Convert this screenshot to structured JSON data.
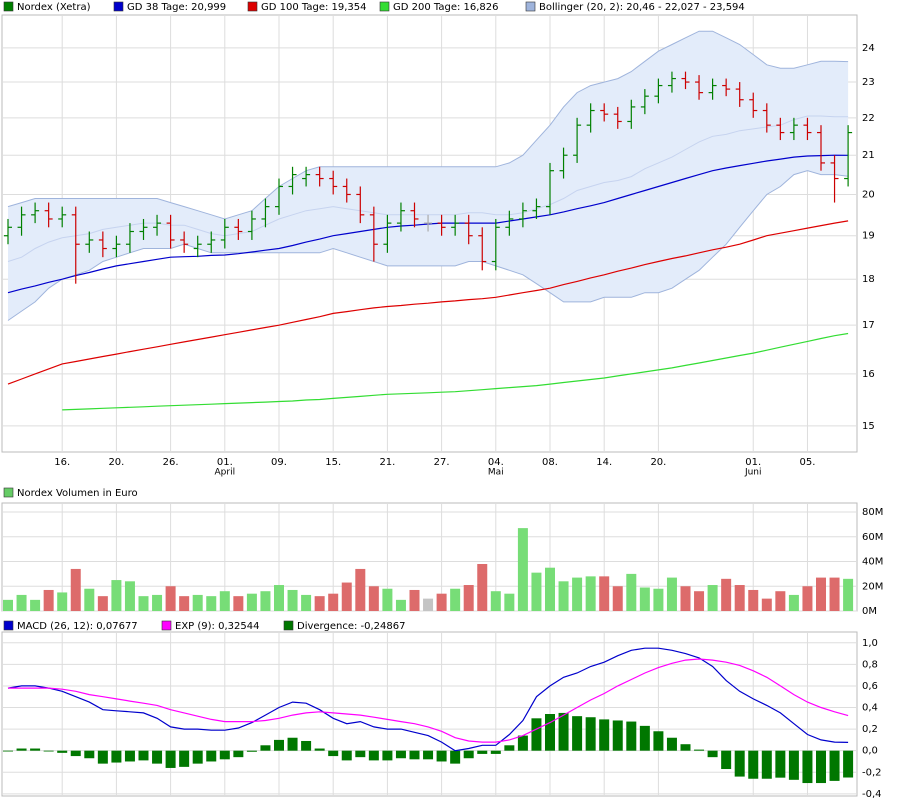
{
  "chart_data": [
    {
      "type": "ohlc",
      "name": "Nordex (Xetra)",
      "up_color": "#008000",
      "down_color": "#cc0000",
      "flat_color": "#aaaaaa",
      "categories": [
        null,
        null,
        null,
        null,
        "16.",
        null,
        null,
        null,
        "20.",
        null,
        null,
        null,
        "26.",
        null,
        null,
        null,
        "01.",
        null,
        null,
        null,
        "09.",
        null,
        null,
        null,
        "15.",
        null,
        null,
        null,
        "21.",
        null,
        null,
        null,
        "27.",
        null,
        null,
        null,
        "04.",
        null,
        null,
        null,
        "08.",
        null,
        null,
        null,
        "14.",
        null,
        null,
        null,
        "20.",
        null,
        null,
        null,
        null,
        null,
        null,
        "01.",
        null,
        null,
        null,
        "05.",
        null,
        null,
        null
      ],
      "month_labels": [
        null,
        null,
        null,
        null,
        null,
        null,
        null,
        null,
        null,
        null,
        null,
        null,
        null,
        null,
        null,
        null,
        "April",
        null,
        null,
        null,
        null,
        null,
        null,
        null,
        null,
        null,
        null,
        null,
        null,
        null,
        null,
        null,
        null,
        null,
        null,
        null,
        "Mai",
        null,
        null,
        null,
        null,
        null,
        null,
        null,
        null,
        null,
        null,
        null,
        null,
        null,
        null,
        null,
        null,
        null,
        null,
        "Juni",
        null,
        null,
        null,
        null,
        null,
        null,
        null
      ],
      "open": [
        19.0,
        19.2,
        19.5,
        19.6,
        19.4,
        19.5,
        18.8,
        18.9,
        18.7,
        18.8,
        19.1,
        19.2,
        19.3,
        18.9,
        18.7,
        18.8,
        18.9,
        19.2,
        19.1,
        19.4,
        19.7,
        20.2,
        20.4,
        20.5,
        20.4,
        20.2,
        20.0,
        19.5,
        18.8,
        19.3,
        19.6,
        19.3,
        19.3,
        19.2,
        19.3,
        19.0,
        18.4,
        19.2,
        19.4,
        19.6,
        19.7,
        20.6,
        21.0,
        21.8,
        22.2,
        22.1,
        21.9,
        22.3,
        22.6,
        22.9,
        23.1,
        23.0,
        22.7,
        22.9,
        22.8,
        22.5,
        22.2,
        21.8,
        21.6,
        21.8,
        21.6,
        20.8,
        20.4
      ],
      "high": [
        19.4,
        19.7,
        19.8,
        19.8,
        19.7,
        19.7,
        19.1,
        19.1,
        19.0,
        19.3,
        19.4,
        19.5,
        19.5,
        19.1,
        19.0,
        19.1,
        19.4,
        19.4,
        19.6,
        19.9,
        20.4,
        20.7,
        20.7,
        20.7,
        20.6,
        20.4,
        20.2,
        19.7,
        19.5,
        19.8,
        19.8,
        19.5,
        19.5,
        19.5,
        19.5,
        19.2,
        19.4,
        19.6,
        19.8,
        19.9,
        20.8,
        21.2,
        22.0,
        22.4,
        22.4,
        22.3,
        22.5,
        22.8,
        23.1,
        23.3,
        23.3,
        23.2,
        23.1,
        23.1,
        23.0,
        22.7,
        22.4,
        22.0,
        22.0,
        22.0,
        21.8,
        21.0,
        21.8
      ],
      "low": [
        18.8,
        19.0,
        19.3,
        19.2,
        19.2,
        17.9,
        18.6,
        18.5,
        18.5,
        18.6,
        18.9,
        19.0,
        18.7,
        18.6,
        18.5,
        18.6,
        18.7,
        18.9,
        18.9,
        19.2,
        19.5,
        20.0,
        20.2,
        20.2,
        20.0,
        19.8,
        19.3,
        18.4,
        18.6,
        19.1,
        19.2,
        19.1,
        19.0,
        19.0,
        18.8,
        18.2,
        18.2,
        19.0,
        19.2,
        19.4,
        19.5,
        20.4,
        20.8,
        21.6,
        21.9,
        21.7,
        21.7,
        22.1,
        22.4,
        22.7,
        22.8,
        22.5,
        22.5,
        22.6,
        22.3,
        22.0,
        21.6,
        21.4,
        21.4,
        21.4,
        20.6,
        19.8,
        20.2
      ],
      "close": [
        19.2,
        19.5,
        19.6,
        19.4,
        19.5,
        18.8,
        18.9,
        18.7,
        18.8,
        19.1,
        19.2,
        19.3,
        18.9,
        18.8,
        18.8,
        18.9,
        19.2,
        19.1,
        19.4,
        19.7,
        20.2,
        20.5,
        20.5,
        20.4,
        20.2,
        20.0,
        19.5,
        18.8,
        19.3,
        19.6,
        19.4,
        19.3,
        19.2,
        19.3,
        19.0,
        18.4,
        19.2,
        19.4,
        19.6,
        19.7,
        20.6,
        21.0,
        21.8,
        22.2,
        22.1,
        21.9,
        22.3,
        22.6,
        22.9,
        23.1,
        23.0,
        22.7,
        22.9,
        22.8,
        22.5,
        22.2,
        21.8,
        21.6,
        21.8,
        21.6,
        20.8,
        20.4,
        21.6
      ],
      "band": {
        "name": "Bollinger (20, 2): 20,46 - 22,027 - 23,594",
        "color": "#9fb4dc",
        "fill": "#e3ecfa",
        "middle_color": "#c6d3ef",
        "upper": [
          19.7,
          19.8,
          19.9,
          19.9,
          19.9,
          19.9,
          19.9,
          19.9,
          19.9,
          19.9,
          19.9,
          19.9,
          19.8,
          19.7,
          19.6,
          19.5,
          19.4,
          19.5,
          19.6,
          19.9,
          20.2,
          20.4,
          20.6,
          20.7,
          20.7,
          20.7,
          20.7,
          20.7,
          20.7,
          20.7,
          20.7,
          20.7,
          20.7,
          20.7,
          20.7,
          20.7,
          20.7,
          20.8,
          21.0,
          21.4,
          21.8,
          22.3,
          22.7,
          22.9,
          23.0,
          23.1,
          23.3,
          23.6,
          23.9,
          24.1,
          24.3,
          24.5,
          24.5,
          24.3,
          24.1,
          23.8,
          23.5,
          23.4,
          23.4,
          23.5,
          23.6,
          23.6,
          23.594
        ],
        "middle": [
          18.4,
          18.5,
          18.7,
          18.85,
          18.95,
          19.0,
          19.05,
          19.15,
          19.2,
          19.25,
          19.3,
          19.3,
          19.25,
          19.25,
          19.15,
          19.05,
          19.0,
          19.05,
          19.1,
          19.25,
          19.4,
          19.5,
          19.6,
          19.65,
          19.7,
          19.65,
          19.6,
          19.55,
          19.5,
          19.5,
          19.5,
          19.5,
          19.5,
          19.5,
          19.55,
          19.55,
          19.5,
          19.5,
          19.55,
          19.65,
          19.75,
          19.9,
          20.1,
          20.2,
          20.3,
          20.35,
          20.45,
          20.65,
          20.8,
          20.95,
          21.15,
          21.35,
          21.5,
          21.55,
          21.65,
          21.7,
          21.75,
          21.8,
          21.95,
          22.05,
          22.05,
          22.03,
          22.027
        ],
        "lower": [
          17.1,
          17.3,
          17.5,
          17.8,
          18.0,
          18.1,
          18.2,
          18.4,
          18.5,
          18.6,
          18.7,
          18.7,
          18.7,
          18.8,
          18.7,
          18.6,
          18.6,
          18.6,
          18.6,
          18.6,
          18.6,
          18.6,
          18.6,
          18.6,
          18.7,
          18.6,
          18.5,
          18.4,
          18.3,
          18.3,
          18.3,
          18.3,
          18.3,
          18.3,
          18.4,
          18.4,
          18.3,
          18.2,
          18.1,
          17.9,
          17.7,
          17.5,
          17.5,
          17.5,
          17.6,
          17.6,
          17.6,
          17.7,
          17.7,
          17.8,
          18.0,
          18.2,
          18.5,
          18.8,
          19.2,
          19.6,
          20.0,
          20.2,
          20.5,
          20.6,
          20.5,
          20.5,
          20.46
        ]
      },
      "series": [
        {
          "name": "GD 38 Tage: 20,999",
          "color": "#0000cc",
          "values": [
            17.7,
            17.78,
            17.85,
            17.93,
            18.0,
            18.08,
            18.15,
            18.23,
            18.3,
            18.35,
            18.4,
            18.45,
            18.5,
            18.51,
            18.52,
            18.54,
            18.55,
            18.58,
            18.62,
            18.66,
            18.7,
            18.77,
            18.85,
            18.92,
            19.0,
            19.05,
            19.1,
            19.15,
            19.2,
            19.23,
            19.25,
            19.28,
            19.3,
            19.3,
            19.3,
            19.3,
            19.3,
            19.35,
            19.4,
            19.45,
            19.5,
            19.57,
            19.65,
            19.72,
            19.8,
            19.9,
            20.0,
            20.1,
            20.2,
            20.3,
            20.4,
            20.5,
            20.6,
            20.67,
            20.73,
            20.79,
            20.85,
            20.9,
            20.95,
            20.98,
            20.99,
            21.0,
            20.999
          ]
        },
        {
          "name": "GD 100 Tage: 19,354",
          "color": "#dd0000",
          "values": [
            15.8,
            15.9,
            16.0,
            16.1,
            16.2,
            16.25,
            16.3,
            16.35,
            16.4,
            16.45,
            16.5,
            16.55,
            16.6,
            16.65,
            16.7,
            16.75,
            16.8,
            16.85,
            16.9,
            16.95,
            17.0,
            17.06,
            17.12,
            17.18,
            17.25,
            17.29,
            17.33,
            17.37,
            17.4,
            17.42,
            17.45,
            17.47,
            17.5,
            17.52,
            17.55,
            17.57,
            17.6,
            17.65,
            17.7,
            17.75,
            17.8,
            17.88,
            17.95,
            18.03,
            18.1,
            18.18,
            18.25,
            18.33,
            18.4,
            18.47,
            18.53,
            18.6,
            18.67,
            18.73,
            18.8,
            18.9,
            19.0,
            19.06,
            19.12,
            19.18,
            19.24,
            19.3,
            19.354
          ]
        },
        {
          "name": "GD 200 Tage: 16,826",
          "color": "#33dd33",
          "values": [
            null,
            null,
            null,
            null,
            15.3,
            15.31,
            15.32,
            15.33,
            15.34,
            15.35,
            15.36,
            15.37,
            15.38,
            15.39,
            15.4,
            15.41,
            15.42,
            15.43,
            15.44,
            15.45,
            15.46,
            15.47,
            15.49,
            15.5,
            15.52,
            15.54,
            15.56,
            15.58,
            15.6,
            15.61,
            15.62,
            15.63,
            15.64,
            15.65,
            15.67,
            15.69,
            15.71,
            15.73,
            15.75,
            15.77,
            15.8,
            15.83,
            15.86,
            15.89,
            15.92,
            15.96,
            16.0,
            16.04,
            16.08,
            16.12,
            16.17,
            16.22,
            16.27,
            16.32,
            16.37,
            16.42,
            16.48,
            16.54,
            16.6,
            16.66,
            16.72,
            16.78,
            16.826
          ]
        }
      ],
      "log": true,
      "grid": true,
      "ylim": [
        14.52,
        25.0
      ],
      "yticks": [
        15,
        16,
        17,
        18,
        19,
        20,
        21,
        22,
        23,
        24
      ]
    },
    {
      "type": "bar",
      "name": "Nordex Volumen in Euro",
      "color": "#66cc66",
      "up_color": "#77dd77",
      "down_color": "#dd6b6b",
      "flat_color": "#c4c4c4",
      "values": [
        9000000,
        13000000,
        9000000,
        17000000,
        15000000,
        34000000,
        18000000,
        12000000,
        25000000,
        24000000,
        12000000,
        13000000,
        20000000,
        12000000,
        13000000,
        12000000,
        16000000,
        12000000,
        14000000,
        16000000,
        21000000,
        17000000,
        13000000,
        12000000,
        14000000,
        23000000,
        34000000,
        20000000,
        18000000,
        9000000,
        17000000,
        10000000,
        14000000,
        18000000,
        21000000,
        38000000,
        16000000,
        14000000,
        67000000,
        31000000,
        35000000,
        24000000,
        27000000,
        28000000,
        28000000,
        20000000,
        30000000,
        19000000,
        18000000,
        27000000,
        20000000,
        16000000,
        21000000,
        26000000,
        21000000,
        17000000,
        10000000,
        16000000,
        13000000,
        20000000,
        27000000,
        27000000,
        26000000
      ],
      "grid": true,
      "ylim": [
        0,
        87300000
      ],
      "yticks": [
        {
          "value": 0,
          "label": "0M"
        },
        {
          "value": 20000000,
          "label": "20M"
        },
        {
          "value": 40000000,
          "label": "40M"
        },
        {
          "value": 60000000,
          "label": "60M"
        },
        {
          "value": 80000000,
          "label": "80M"
        }
      ]
    },
    {
      "type": "macd",
      "grid": true,
      "series": [
        {
          "name": "MACD (26, 12): 0,07677",
          "color": "#0000cc",
          "style": "line",
          "values": [
            0.58,
            0.6,
            0.6,
            0.58,
            0.55,
            0.5,
            0.45,
            0.38,
            0.37,
            0.36,
            0.35,
            0.3,
            0.22,
            0.2,
            0.2,
            0.19,
            0.19,
            0.21,
            0.26,
            0.33,
            0.4,
            0.45,
            0.44,
            0.38,
            0.3,
            0.25,
            0.27,
            0.22,
            0.2,
            0.2,
            0.17,
            0.14,
            0.08,
            0.0,
            0.02,
            0.05,
            0.05,
            0.15,
            0.28,
            0.5,
            0.6,
            0.68,
            0.72,
            0.78,
            0.82,
            0.88,
            0.93,
            0.95,
            0.95,
            0.93,
            0.9,
            0.86,
            0.78,
            0.65,
            0.55,
            0.48,
            0.42,
            0.35,
            0.25,
            0.15,
            0.1,
            0.08,
            0.07677
          ]
        },
        {
          "name": "EXP (9): 0,32544",
          "color": "#ff00ff",
          "style": "line",
          "values": [
            0.58,
            0.58,
            0.58,
            0.58,
            0.57,
            0.55,
            0.52,
            0.5,
            0.48,
            0.46,
            0.44,
            0.42,
            0.38,
            0.35,
            0.32,
            0.29,
            0.27,
            0.27,
            0.27,
            0.28,
            0.3,
            0.33,
            0.35,
            0.36,
            0.35,
            0.34,
            0.33,
            0.31,
            0.29,
            0.27,
            0.25,
            0.22,
            0.18,
            0.12,
            0.09,
            0.08,
            0.08,
            0.1,
            0.14,
            0.2,
            0.26,
            0.33,
            0.4,
            0.47,
            0.53,
            0.6,
            0.66,
            0.72,
            0.77,
            0.81,
            0.84,
            0.85,
            0.84,
            0.82,
            0.79,
            0.74,
            0.68,
            0.6,
            0.52,
            0.45,
            0.4,
            0.36,
            0.32544
          ]
        },
        {
          "name": "Divergence: -0,24867",
          "color": "#007700",
          "style": "bar",
          "values": [
            0,
            0.02,
            0.02,
            0,
            -0.02,
            -0.05,
            -0.07,
            -0.12,
            -0.11,
            -0.1,
            -0.09,
            -0.12,
            -0.16,
            -0.15,
            -0.12,
            -0.1,
            -0.08,
            -0.06,
            -0.01,
            0.05,
            0.1,
            0.12,
            0.09,
            0.02,
            -0.05,
            -0.09,
            -0.06,
            -0.09,
            -0.09,
            -0.07,
            -0.08,
            -0.08,
            -0.1,
            -0.12,
            -0.07,
            -0.03,
            -0.03,
            0.05,
            0.14,
            0.3,
            0.34,
            0.35,
            0.32,
            0.31,
            0.29,
            0.28,
            0.27,
            0.23,
            0.18,
            0.12,
            0.06,
            0.01,
            -0.06,
            -0.17,
            -0.24,
            -0.26,
            -0.26,
            -0.25,
            -0.27,
            -0.3,
            -0.3,
            -0.28,
            -0.24867
          ]
        }
      ],
      "ylim": [
        -0.42,
        1.1
      ],
      "yticks": [
        {
          "value": 1,
          "label": "1,0"
        },
        {
          "value": 0.8,
          "label": "0,8"
        },
        {
          "value": 0.6,
          "label": "0,6"
        },
        {
          "value": 0.4,
          "label": "0,4"
        },
        {
          "value": 0.2,
          "label": "0,2"
        },
        {
          "value": 0,
          "label": "0,0"
        },
        {
          "value": -0.2,
          "label": "-0,2"
        },
        {
          "value": -0.4,
          "label": "-0,4"
        }
      ]
    }
  ]
}
